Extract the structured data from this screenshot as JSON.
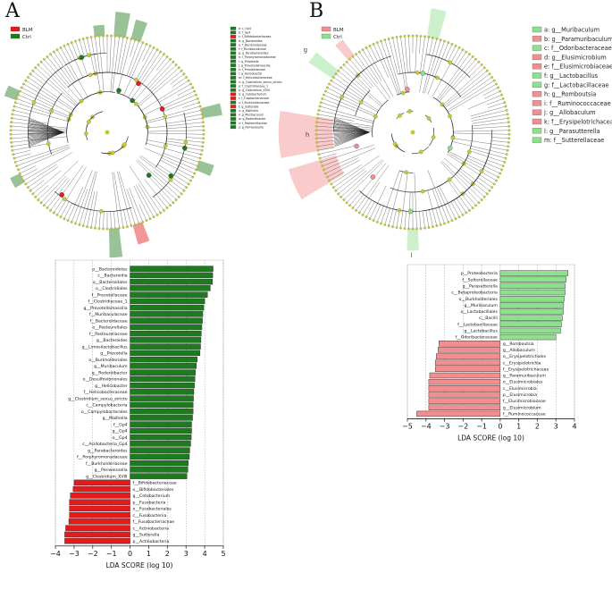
{
  "figure": {
    "panel_a_label": "A",
    "panel_b_label": "B",
    "colors": {
      "blm_a": "#e41a1c",
      "ctrl_a": "#1e7a1e",
      "blm_b": "#f28e8e",
      "ctrl_b": "#8ee08e",
      "node": "#c8c832",
      "edge": "#333333"
    }
  },
  "cladogram_a": {
    "legend": [
      {
        "name": "BLM",
        "color": "#e41a1c"
      },
      {
        "name": "Ctrl",
        "color": "#1e7a1e"
      }
    ],
    "key": [
      {
        "label": "a: c_Gp4",
        "color": "#1e7a1e"
      },
      {
        "label": "b: f_Gp4",
        "color": "#1e7a1e"
      },
      {
        "label": "c: f_Bifidobacteriaceae",
        "color": "#e41a1c"
      },
      {
        "label": "d: g_Bacteroides",
        "color": "#1e7a1e"
      },
      {
        "label": "e: f_Bacteroidaceae",
        "color": "#1e7a1e"
      },
      {
        "label": "f: f_Muribaculaceae",
        "color": "#1e7a1e"
      },
      {
        "label": "g: g_Parabacteroides",
        "color": "#1e7a1e"
      },
      {
        "label": "h: f_Porphyromonadaceae",
        "color": "#1e7a1e"
      },
      {
        "label": "i: g_Prevotella",
        "color": "#1e7a1e"
      },
      {
        "label": "j: g_Prevotellamassilia",
        "color": "#1e7a1e"
      },
      {
        "label": "k: f_Prevotellaceae",
        "color": "#1e7a1e"
      },
      {
        "label": "l: g_Helicobacter",
        "color": "#1e7a1e"
      },
      {
        "label": "m: f_Helicobacteraceae",
        "color": "#1e7a1e"
      },
      {
        "label": "n: g_Clostridium_sensu_stricto",
        "color": "#1e7a1e"
      },
      {
        "label": "o: f_Clostridiaceae_1",
        "color": "#1e7a1e"
      },
      {
        "label": "p: g_Clostridium_XVIII",
        "color": "#1e7a1e"
      },
      {
        "label": "q: g_Cetobacterium",
        "color": "#e41a1c"
      },
      {
        "label": "r: f_Fusobacteriaceae",
        "color": "#e41a1c"
      },
      {
        "label": "s: f_Burkholderiaceae",
        "color": "#1e7a1e"
      },
      {
        "label": "t: g_Sutterella",
        "color": "#e41a1c"
      },
      {
        "label": "u: g_Mailhella",
        "color": "#1e7a1e"
      },
      {
        "label": "v: g_Muribaculum",
        "color": "#1e7a1e"
      },
      {
        "label": "w: g_Rodentibacter",
        "color": "#1e7a1e"
      },
      {
        "label": "x: f_Pasteurellaceae",
        "color": "#1e7a1e"
      },
      {
        "label": "y: g_Periweissella",
        "color": "#1e7a1e"
      }
    ]
  },
  "cladogram_b": {
    "legend": [
      {
        "name": "BLM",
        "color": "#f28e8e"
      },
      {
        "name": "Ctrl",
        "color": "#8ee08e"
      }
    ],
    "key": [
      {
        "label": "a: g__Muribaculum",
        "color": "#8ee08e"
      },
      {
        "label": "b: g__Paramuribaculum",
        "color": "#f28e8e"
      },
      {
        "label": "c: f__Odoribacteraceae",
        "color": "#8ee08e"
      },
      {
        "label": "d: g__Elusimicrobium",
        "color": "#f28e8e"
      },
      {
        "label": "e: f__Elusimicrobiaceae",
        "color": "#f28e8e"
      },
      {
        "label": "f: g__Lactobacillus",
        "color": "#8ee08e"
      },
      {
        "label": "g: f__Lactobacillaceae",
        "color": "#8ee08e"
      },
      {
        "label": "h: g__Romboutsia",
        "color": "#f28e8e"
      },
      {
        "label": "i: f__Ruminococcaceae",
        "color": "#f28e8e"
      },
      {
        "label": "j: g__Allobaculum",
        "color": "#f28e8e"
      },
      {
        "label": "k: f__Erysipelotrichaceae",
        "color": "#f28e8e"
      },
      {
        "label": "l: g__Parasutterella",
        "color": "#8ee08e"
      },
      {
        "label": "m: f__Sutterellaceae",
        "color": "#8ee08e"
      }
    ],
    "sector_letters": [
      "c",
      "g",
      "h",
      "l"
    ]
  },
  "chart_data": [
    {
      "type": "bar",
      "orientation": "horizontal",
      "title": "",
      "xlabel": "LDA SCORE (log 10)",
      "xlim": [
        -4,
        5
      ],
      "xticks": [
        -4,
        -3,
        -2,
        -1,
        0,
        1,
        2,
        3,
        4,
        5
      ],
      "grid": "vertical dotted",
      "colors": {
        "Ctrl": "#1e7a1e",
        "BLM": "#e41a1c"
      },
      "categories": [
        "p__Bacteroidetes",
        "c__Bacteroidia",
        "o__Bacteroidales",
        "o__Clostridiales",
        "f__Prevotellaceae",
        "f__Clostridiaceae_1",
        "g__Prevotellamassilia",
        "f__Muribaculaceae",
        "f__Bacteroidaceae",
        "o__Pasteurellales",
        "f__Pasteurellaceae",
        "g__Bacteroides",
        "g__Limosilactobacillus",
        "g__Prevotella",
        "o__Burkholderiales",
        "g__Muribaculum",
        "g__Rodentibacter",
        "o__Desulfovibrionales",
        "g__Helicobacter",
        "f__Helicobacteraceae",
        "g__Clostridium_sensu_stricto",
        "c__Campylobacteria",
        "o__Campylobacterales",
        "g__Mailhella",
        "f__Gp4",
        "g__Gp4",
        "o__Gp4",
        "c__Acidobacteria_Gp4",
        "g__Parabacteroides",
        "f__Porphyromonadaceae",
        "f__Burkholderiaceae",
        "g__Periweissella",
        "g__Clostridium_XVIII",
        "f__Bifidobacteriaceae",
        "o__Bifidobacteriales",
        "g__Cetobacterium",
        "p__Fusobacteria",
        "o__Fusobacteriales",
        "c__Fusobacteriia",
        "f__Fusobacteriaceae",
        "c__Actinobacteria",
        "g__Sutterella",
        "p__Actinobacteria"
      ],
      "values": [
        4.45,
        4.43,
        4.42,
        4.3,
        4.15,
        4.0,
        3.95,
        3.9,
        3.88,
        3.85,
        3.82,
        3.8,
        3.78,
        3.75,
        3.6,
        3.55,
        3.5,
        3.48,
        3.45,
        3.42,
        3.4,
        3.38,
        3.38,
        3.35,
        3.3,
        3.3,
        3.28,
        3.25,
        3.2,
        3.18,
        3.12,
        3.1,
        3.05,
        -3.0,
        -3.05,
        -3.2,
        -3.25,
        -3.25,
        -3.25,
        -3.28,
        -3.45,
        -3.5,
        -3.5
      ],
      "groups": [
        "Ctrl",
        "Ctrl",
        "Ctrl",
        "Ctrl",
        "Ctrl",
        "Ctrl",
        "Ctrl",
        "Ctrl",
        "Ctrl",
        "Ctrl",
        "Ctrl",
        "Ctrl",
        "Ctrl",
        "Ctrl",
        "Ctrl",
        "Ctrl",
        "Ctrl",
        "Ctrl",
        "Ctrl",
        "Ctrl",
        "Ctrl",
        "Ctrl",
        "Ctrl",
        "Ctrl",
        "Ctrl",
        "Ctrl",
        "Ctrl",
        "Ctrl",
        "Ctrl",
        "Ctrl",
        "Ctrl",
        "Ctrl",
        "Ctrl",
        "BLM",
        "BLM",
        "BLM",
        "BLM",
        "BLM",
        "BLM",
        "BLM",
        "BLM",
        "BLM",
        "BLM"
      ]
    },
    {
      "type": "bar",
      "orientation": "horizontal",
      "title": "",
      "xlabel": "LDA SCORE (log 10)",
      "xlim": [
        -5,
        4
      ],
      "xticks": [
        -5,
        -4,
        -3,
        -2,
        -1,
        0,
        1,
        2,
        3,
        4
      ],
      "grid": "vertical dotted",
      "colors": {
        "Ctrl": "#8ee08e",
        "BLM": "#f28e8e"
      },
      "categories": [
        "p__Proteobacteria",
        "f__Sutterellaceae",
        "g__Parasutterella",
        "c__Betaproteobacteria",
        "o__Burkholderiales",
        "g__Muribaculum",
        "o__Lactobacillales",
        "c__Bacilli",
        "f__Lactobacillaceae",
        "g__Lactobacillus",
        "f__Odoribacteraceae",
        "g__Romboutsia",
        "g__Allobaculum",
        "o__Erysipelotrichales",
        "c__Erysipelotrichia",
        "f__Erysipelotrichaceae",
        "g__Paramuribaculum",
        "o__Elusimicrobiales",
        "c__Elusimicrobia",
        "p__Elusimicrobia",
        "f__Elusimicrobiaceae",
        "g__Elusimicrobium",
        "f__Ruminococcaceae"
      ],
      "values": [
        3.65,
        3.55,
        3.5,
        3.5,
        3.45,
        3.42,
        3.4,
        3.35,
        3.3,
        3.25,
        3.0,
        -3.3,
        -3.35,
        -3.45,
        -3.5,
        -3.5,
        -3.8,
        -3.85,
        -3.85,
        -3.85,
        -3.85,
        -3.85,
        -4.5
      ],
      "groups": [
        "Ctrl",
        "Ctrl",
        "Ctrl",
        "Ctrl",
        "Ctrl",
        "Ctrl",
        "Ctrl",
        "Ctrl",
        "Ctrl",
        "Ctrl",
        "Ctrl",
        "BLM",
        "BLM",
        "BLM",
        "BLM",
        "BLM",
        "BLM",
        "BLM",
        "BLM",
        "BLM",
        "BLM",
        "BLM",
        "BLM"
      ]
    }
  ]
}
